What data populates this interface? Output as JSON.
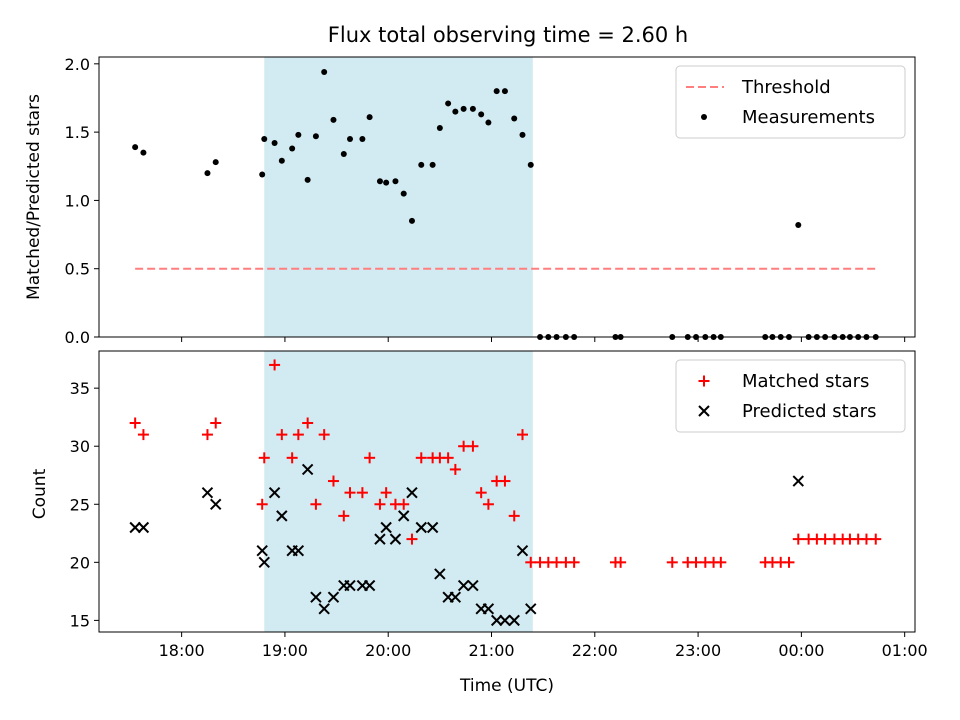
{
  "chart_data": [
    {
      "type": "scatter",
      "title": "Flux total observing time = 2.60 h",
      "ylabel": "Matched/Predicted stars",
      "xlabel": "",
      "x_unit": "hours since 00:00 UTC of the first night (values above 24 are after midnight)",
      "xlim": [
        17.2,
        25.1
      ],
      "ylim": [
        0,
        2.05
      ],
      "yticks": [
        "0.0",
        "0.5",
        "1.0",
        "1.5",
        "2.0"
      ],
      "shaded_interval": [
        18.8,
        21.4
      ],
      "shade_color": "#add8e6",
      "threshold": {
        "name": "Threshold",
        "value": 0.5,
        "x_range": [
          17.55,
          24.72
        ],
        "color": "#ff7f7f",
        "style": "dashed"
      },
      "legend_position": "upper right",
      "series": [
        {
          "name": "Measurements",
          "marker": "dot",
          "color": "#000000",
          "points": [
            [
              17.55,
              1.39
            ],
            [
              17.63,
              1.35
            ],
            [
              18.25,
              1.2
            ],
            [
              18.33,
              1.28
            ],
            [
              18.78,
              1.19
            ],
            [
              18.8,
              1.45
            ],
            [
              18.9,
              1.42
            ],
            [
              18.97,
              1.29
            ],
            [
              19.07,
              1.38
            ],
            [
              19.13,
              1.48
            ],
            [
              19.22,
              1.15
            ],
            [
              19.3,
              1.47
            ],
            [
              19.38,
              1.94
            ],
            [
              19.47,
              1.59
            ],
            [
              19.57,
              1.34
            ],
            [
              19.63,
              1.45
            ],
            [
              19.75,
              1.45
            ],
            [
              19.82,
              1.61
            ],
            [
              19.92,
              1.14
            ],
            [
              19.98,
              1.13
            ],
            [
              20.07,
              1.14
            ],
            [
              20.15,
              1.05
            ],
            [
              20.23,
              0.85
            ],
            [
              20.32,
              1.26
            ],
            [
              20.43,
              1.26
            ],
            [
              20.5,
              1.53
            ],
            [
              20.58,
              1.71
            ],
            [
              20.65,
              1.65
            ],
            [
              20.73,
              1.67
            ],
            [
              20.82,
              1.67
            ],
            [
              20.9,
              1.63
            ],
            [
              20.97,
              1.57
            ],
            [
              21.05,
              1.8
            ],
            [
              21.13,
              1.8
            ],
            [
              21.22,
              1.6
            ],
            [
              21.3,
              1.48
            ],
            [
              21.38,
              1.26
            ],
            [
              21.47,
              0
            ],
            [
              21.55,
              0
            ],
            [
              21.63,
              0
            ],
            [
              21.72,
              0
            ],
            [
              21.8,
              0
            ],
            [
              22.2,
              0
            ],
            [
              22.25,
              0
            ],
            [
              22.75,
              0
            ],
            [
              22.9,
              0
            ],
            [
              22.98,
              0
            ],
            [
              23.07,
              0
            ],
            [
              23.15,
              0
            ],
            [
              23.22,
              0
            ],
            [
              23.65,
              0
            ],
            [
              23.72,
              0
            ],
            [
              23.8,
              0
            ],
            [
              23.88,
              0
            ],
            [
              23.97,
              0.82
            ],
            [
              24.07,
              0
            ],
            [
              24.15,
              0
            ],
            [
              24.23,
              0
            ],
            [
              24.32,
              0
            ],
            [
              24.4,
              0
            ],
            [
              24.47,
              0
            ],
            [
              24.55,
              0
            ],
            [
              24.63,
              0
            ],
            [
              24.72,
              0
            ]
          ]
        }
      ]
    },
    {
      "type": "scatter",
      "title": "",
      "xlabel": "Time (UTC)",
      "ylabel": "Count",
      "x_unit": "hours since 00:00 UTC of the first night (values above 24 are after midnight)",
      "xlim": [
        17.2,
        25.1
      ],
      "ylim": [
        14,
        38.2
      ],
      "yticks": [
        "15",
        "20",
        "25",
        "30",
        "35"
      ],
      "xticks": [
        {
          "value": 18,
          "label": "18:00"
        },
        {
          "value": 19,
          "label": "19:00"
        },
        {
          "value": 20,
          "label": "20:00"
        },
        {
          "value": 21,
          "label": "21:00"
        },
        {
          "value": 22,
          "label": "22:00"
        },
        {
          "value": 23,
          "label": "23:00"
        },
        {
          "value": 24,
          "label": "00:00"
        },
        {
          "value": 25,
          "label": "01:00"
        }
      ],
      "shaded_interval": [
        18.8,
        21.4
      ],
      "shade_color": "#add8e6",
      "legend_position": "upper right",
      "series": [
        {
          "name": "Matched stars",
          "marker": "plus",
          "color": "#ff0000",
          "points": [
            [
              17.55,
              32
            ],
            [
              17.63,
              31
            ],
            [
              18.25,
              31
            ],
            [
              18.33,
              32
            ],
            [
              18.78,
              25
            ],
            [
              18.8,
              29
            ],
            [
              18.9,
              37
            ],
            [
              18.97,
              31
            ],
            [
              19.07,
              29
            ],
            [
              19.13,
              31
            ],
            [
              19.22,
              32
            ],
            [
              19.3,
              25
            ],
            [
              19.38,
              31
            ],
            [
              19.47,
              27
            ],
            [
              19.57,
              24
            ],
            [
              19.63,
              26
            ],
            [
              19.75,
              26
            ],
            [
              19.82,
              29
            ],
            [
              19.92,
              25
            ],
            [
              19.98,
              26
            ],
            [
              20.07,
              25
            ],
            [
              20.15,
              25
            ],
            [
              20.23,
              22
            ],
            [
              20.32,
              29
            ],
            [
              20.43,
              29
            ],
            [
              20.5,
              29
            ],
            [
              20.58,
              29
            ],
            [
              20.65,
              28
            ],
            [
              20.73,
              30
            ],
            [
              20.82,
              30
            ],
            [
              20.9,
              26
            ],
            [
              20.97,
              25
            ],
            [
              21.05,
              27
            ],
            [
              21.13,
              27
            ],
            [
              21.22,
              24
            ],
            [
              21.3,
              31
            ],
            [
              21.38,
              20
            ],
            [
              21.47,
              20
            ],
            [
              21.55,
              20
            ],
            [
              21.63,
              20
            ],
            [
              21.72,
              20
            ],
            [
              21.8,
              20
            ],
            [
              22.2,
              20
            ],
            [
              22.25,
              20
            ],
            [
              22.75,
              20
            ],
            [
              22.9,
              20
            ],
            [
              22.98,
              20
            ],
            [
              23.07,
              20
            ],
            [
              23.15,
              20
            ],
            [
              23.22,
              20
            ],
            [
              23.65,
              20
            ],
            [
              23.72,
              20
            ],
            [
              23.8,
              20
            ],
            [
              23.88,
              20
            ],
            [
              23.97,
              22
            ],
            [
              24.07,
              22
            ],
            [
              24.15,
              22
            ],
            [
              24.23,
              22
            ],
            [
              24.32,
              22
            ],
            [
              24.4,
              22
            ],
            [
              24.47,
              22
            ],
            [
              24.55,
              22
            ],
            [
              24.63,
              22
            ],
            [
              24.72,
              22
            ]
          ]
        },
        {
          "name": "Predicted stars",
          "marker": "x",
          "color": "#000000",
          "points": [
            [
              17.55,
              23
            ],
            [
              17.63,
              23
            ],
            [
              18.25,
              26
            ],
            [
              18.33,
              25
            ],
            [
              18.78,
              21
            ],
            [
              18.8,
              20
            ],
            [
              18.9,
              26
            ],
            [
              18.97,
              24
            ],
            [
              19.07,
              21
            ],
            [
              19.13,
              21
            ],
            [
              19.22,
              28
            ],
            [
              19.3,
              17
            ],
            [
              19.38,
              16
            ],
            [
              19.47,
              17
            ],
            [
              19.57,
              18
            ],
            [
              19.63,
              18
            ],
            [
              19.75,
              18
            ],
            [
              19.82,
              18
            ],
            [
              19.92,
              22
            ],
            [
              19.98,
              23
            ],
            [
              20.07,
              22
            ],
            [
              20.15,
              24
            ],
            [
              20.23,
              26
            ],
            [
              20.32,
              23
            ],
            [
              20.43,
              23
            ],
            [
              20.5,
              19
            ],
            [
              20.58,
              17
            ],
            [
              20.65,
              17
            ],
            [
              20.73,
              18
            ],
            [
              20.82,
              18
            ],
            [
              20.9,
              16
            ],
            [
              20.97,
              16
            ],
            [
              21.05,
              15
            ],
            [
              21.13,
              15
            ],
            [
              21.22,
              15
            ],
            [
              21.3,
              21
            ],
            [
              21.38,
              16
            ],
            [
              23.97,
              27
            ]
          ]
        }
      ]
    }
  ]
}
